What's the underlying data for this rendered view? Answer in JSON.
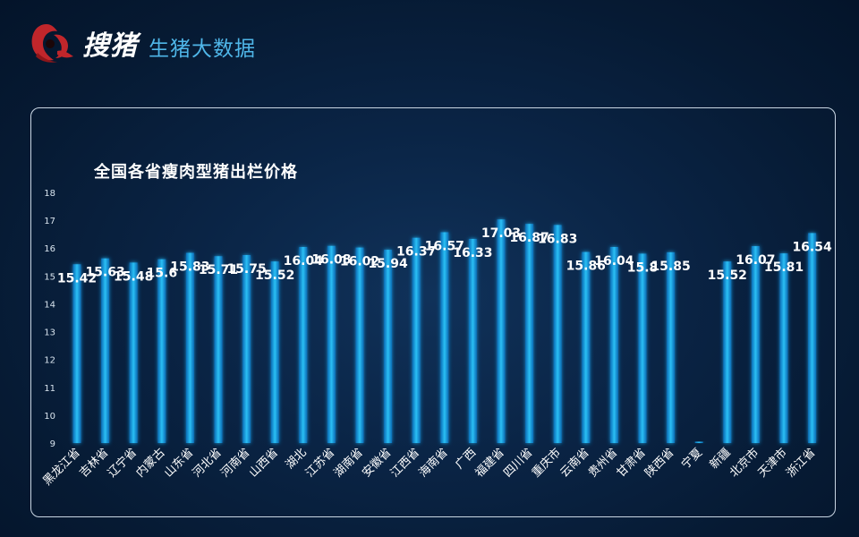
{
  "header": {
    "brand_name": "搜猪",
    "subtitle": "生猪大数据"
  },
  "colors": {
    "background": "#0a2445",
    "bar": "#1fa8e8",
    "bar_glow": "#0d6fb8",
    "label": "#ffffff",
    "axis_text": "#d8e4ee",
    "logo_red": "#c0262b"
  },
  "chart_data": {
    "type": "bar",
    "title": "全国各省瘦肉型猪出栏价格",
    "xlabel": "",
    "ylabel": "",
    "ylim": [
      9,
      18
    ],
    "yticks": [
      "9",
      "10",
      "11",
      "12",
      "13",
      "14",
      "15",
      "16",
      "17",
      "18"
    ],
    "grid": false,
    "categories": [
      "黑龙江省",
      "吉林省",
      "辽宁省",
      "内蒙古",
      "山东省",
      "河北省",
      "河南省",
      "山西省",
      "湖北",
      "江苏省",
      "湖南省",
      "安徽省",
      "江西省",
      "海南省",
      "广西",
      "福建省",
      "四川省",
      "重庆市",
      "云南省",
      "贵州省",
      "甘肃省",
      "陕西省",
      "宁夏",
      "新疆",
      "北京市",
      "天津市",
      "浙江省"
    ],
    "values": [
      15.42,
      15.63,
      15.48,
      15.6,
      15.83,
      15.71,
      15.75,
      15.52,
      16.04,
      16.08,
      16.02,
      15.94,
      16.37,
      16.57,
      16.33,
      17.03,
      16.87,
      16.83,
      15.86,
      16.04,
      15.8,
      15.85,
      9.0,
      15.52,
      16.07,
      15.81,
      16.54
    ],
    "data_labels": [
      "15.42",
      "15.63",
      "15.48",
      "15.6",
      "15.83",
      "15.71",
      "15.75",
      "15.52",
      "16.04",
      "16.08",
      "16.02",
      "15.94",
      "16.37",
      "16.57",
      "16.33",
      "17.03",
      "16.87",
      "16.83",
      "15.86",
      "16.04",
      "15.8",
      "15.85",
      "",
      "15.52",
      "16.07",
      "15.81",
      "16.54"
    ]
  }
}
